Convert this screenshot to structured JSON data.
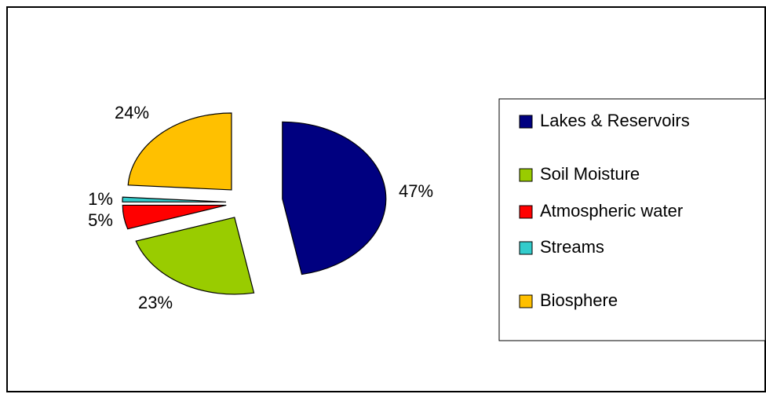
{
  "chart_data": {
    "type": "pie",
    "categories": [
      "Lakes & Reservoirs",
      "Soil Moisture",
      "Atmospheric water",
      "Streams",
      "Biosphere"
    ],
    "values": [
      47,
      23,
      5,
      1,
      24
    ],
    "value_labels": [
      "47%",
      "23%",
      "5%",
      "1%",
      "24%"
    ],
    "colors": [
      "#000080",
      "#99cc00",
      "#ff0000",
      "#33cccc",
      "#ffc000"
    ],
    "legend": "right"
  }
}
